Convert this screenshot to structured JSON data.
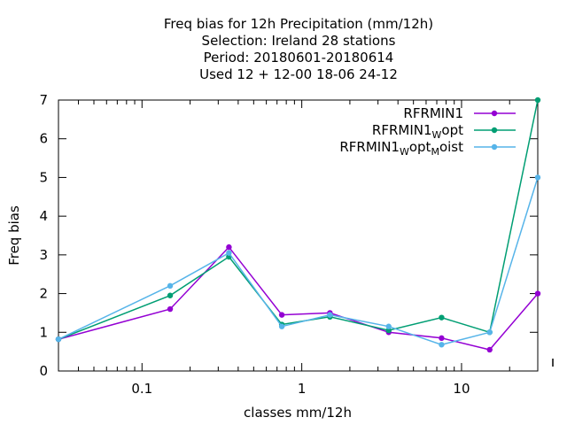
{
  "chart_data": {
    "type": "line",
    "title_lines": [
      "Freq bias  for 12h Precipitation (mm/12h)",
      "Selection: Ireland     28 stations",
      "Period: 20180601-20180614",
      "Used  12 + 12-00 18-06 24-12"
    ],
    "xlabel": "classes mm/12h",
    "ylabel": "Freq bias",
    "x_scale": "log",
    "xlim": [
      0.03,
      30
    ],
    "ylim": [
      0,
      7
    ],
    "x_tick_labels": [
      "0.1",
      "1",
      "10"
    ],
    "y_tick_labels": [
      "0",
      "1",
      "2",
      "3",
      "4",
      "5",
      "6",
      "7"
    ],
    "grid": false,
    "legend_position": "top-right",
    "x": [
      0.03,
      0.15,
      0.35,
      0.75,
      1.5,
      3.5,
      7.5,
      15,
      30
    ],
    "series": [
      {
        "name": "RFRMIN1",
        "legend_parts": [
          {
            "text": "RFRMIN1",
            "sub": false
          }
        ],
        "color": "#9400d3",
        "values": [
          0.82,
          1.6,
          3.2,
          1.45,
          1.5,
          1.0,
          0.85,
          0.55,
          2.0
        ]
      },
      {
        "name": "RFRMIN1_Wopt",
        "legend_parts": [
          {
            "text": "RFRMIN1",
            "sub": false
          },
          {
            "text": "W",
            "sub": true
          },
          {
            "text": "opt",
            "sub": false
          }
        ],
        "color": "#009e73",
        "values": [
          0.82,
          1.95,
          2.95,
          1.2,
          1.4,
          1.05,
          1.38,
          1.0,
          7.0
        ]
      },
      {
        "name": "RFRMIN1_Wopt_Moist",
        "legend_parts": [
          {
            "text": "RFRMIN1",
            "sub": false
          },
          {
            "text": "W",
            "sub": true
          },
          {
            "text": "opt",
            "sub": false
          },
          {
            "text": "M",
            "sub": true
          },
          {
            "text": "oist",
            "sub": false
          }
        ],
        "color": "#56b4e9",
        "values": [
          0.82,
          2.2,
          3.05,
          1.15,
          1.45,
          1.15,
          0.68,
          1.0,
          5.0
        ]
      }
    ]
  }
}
